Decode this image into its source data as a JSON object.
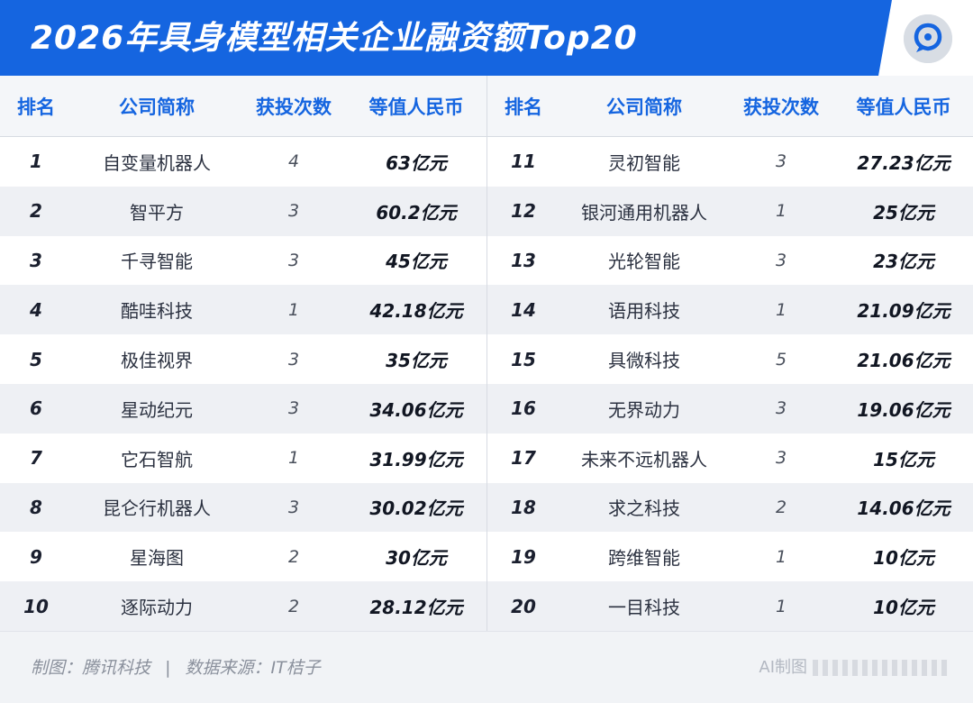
{
  "title": "2026年具身模型相关企业融资额Top20",
  "logo_icon": "tencent-tech-logo-icon",
  "headers": {
    "rank": "排名",
    "company": "公司简称",
    "rounds": "获投次数",
    "amount": "等值人民币"
  },
  "rows": [
    {
      "rank": "1",
      "company": "自变量机器人",
      "rounds": "4",
      "amount": "63亿元"
    },
    {
      "rank": "2",
      "company": "智平方",
      "rounds": "3",
      "amount": "60.2亿元"
    },
    {
      "rank": "3",
      "company": "千寻智能",
      "rounds": "3",
      "amount": "45亿元"
    },
    {
      "rank": "4",
      "company": "酷哇科技",
      "rounds": "1",
      "amount": "42.18亿元"
    },
    {
      "rank": "5",
      "company": "极佳视界",
      "rounds": "3",
      "amount": "35亿元"
    },
    {
      "rank": "6",
      "company": "星动纪元",
      "rounds": "3",
      "amount": "34.06亿元"
    },
    {
      "rank": "7",
      "company": "它石智航",
      "rounds": "1",
      "amount": "31.99亿元"
    },
    {
      "rank": "8",
      "company": "昆仑行机器人",
      "rounds": "3",
      "amount": "30.02亿元"
    },
    {
      "rank": "9",
      "company": "星海图",
      "rounds": "2",
      "amount": "30亿元"
    },
    {
      "rank": "10",
      "company": "逐际动力",
      "rounds": "2",
      "amount": "28.12亿元"
    },
    {
      "rank": "11",
      "company": "灵初智能",
      "rounds": "3",
      "amount": "27.23亿元"
    },
    {
      "rank": "12",
      "company": "银河通用机器人",
      "rounds": "1",
      "amount": "25亿元"
    },
    {
      "rank": "13",
      "company": "光轮智能",
      "rounds": "3",
      "amount": "23亿元"
    },
    {
      "rank": "14",
      "company": "语用科技",
      "rounds": "1",
      "amount": "21.09亿元"
    },
    {
      "rank": "15",
      "company": "具微科技",
      "rounds": "5",
      "amount": "21.06亿元"
    },
    {
      "rank": "16",
      "company": "无界动力",
      "rounds": "3",
      "amount": "19.06亿元"
    },
    {
      "rank": "17",
      "company": "未来不远机器人",
      "rounds": "3",
      "amount": "15亿元"
    },
    {
      "rank": "18",
      "company": "求之科技",
      "rounds": "2",
      "amount": "14.06亿元"
    },
    {
      "rank": "19",
      "company": "跨维智能",
      "rounds": "1",
      "amount": "10亿元"
    },
    {
      "rank": "20",
      "company": "一目科技",
      "rounds": "1",
      "amount": "10亿元"
    }
  ],
  "footer": {
    "credit": "制图：腾讯科技",
    "separator": "|",
    "source": "数据来源：IT桔子",
    "ai_note": "AI制图"
  },
  "colors": {
    "accent": "#1565e0",
    "row_alt": "#eef0f4",
    "footer_bg": "#f1f3f6"
  }
}
